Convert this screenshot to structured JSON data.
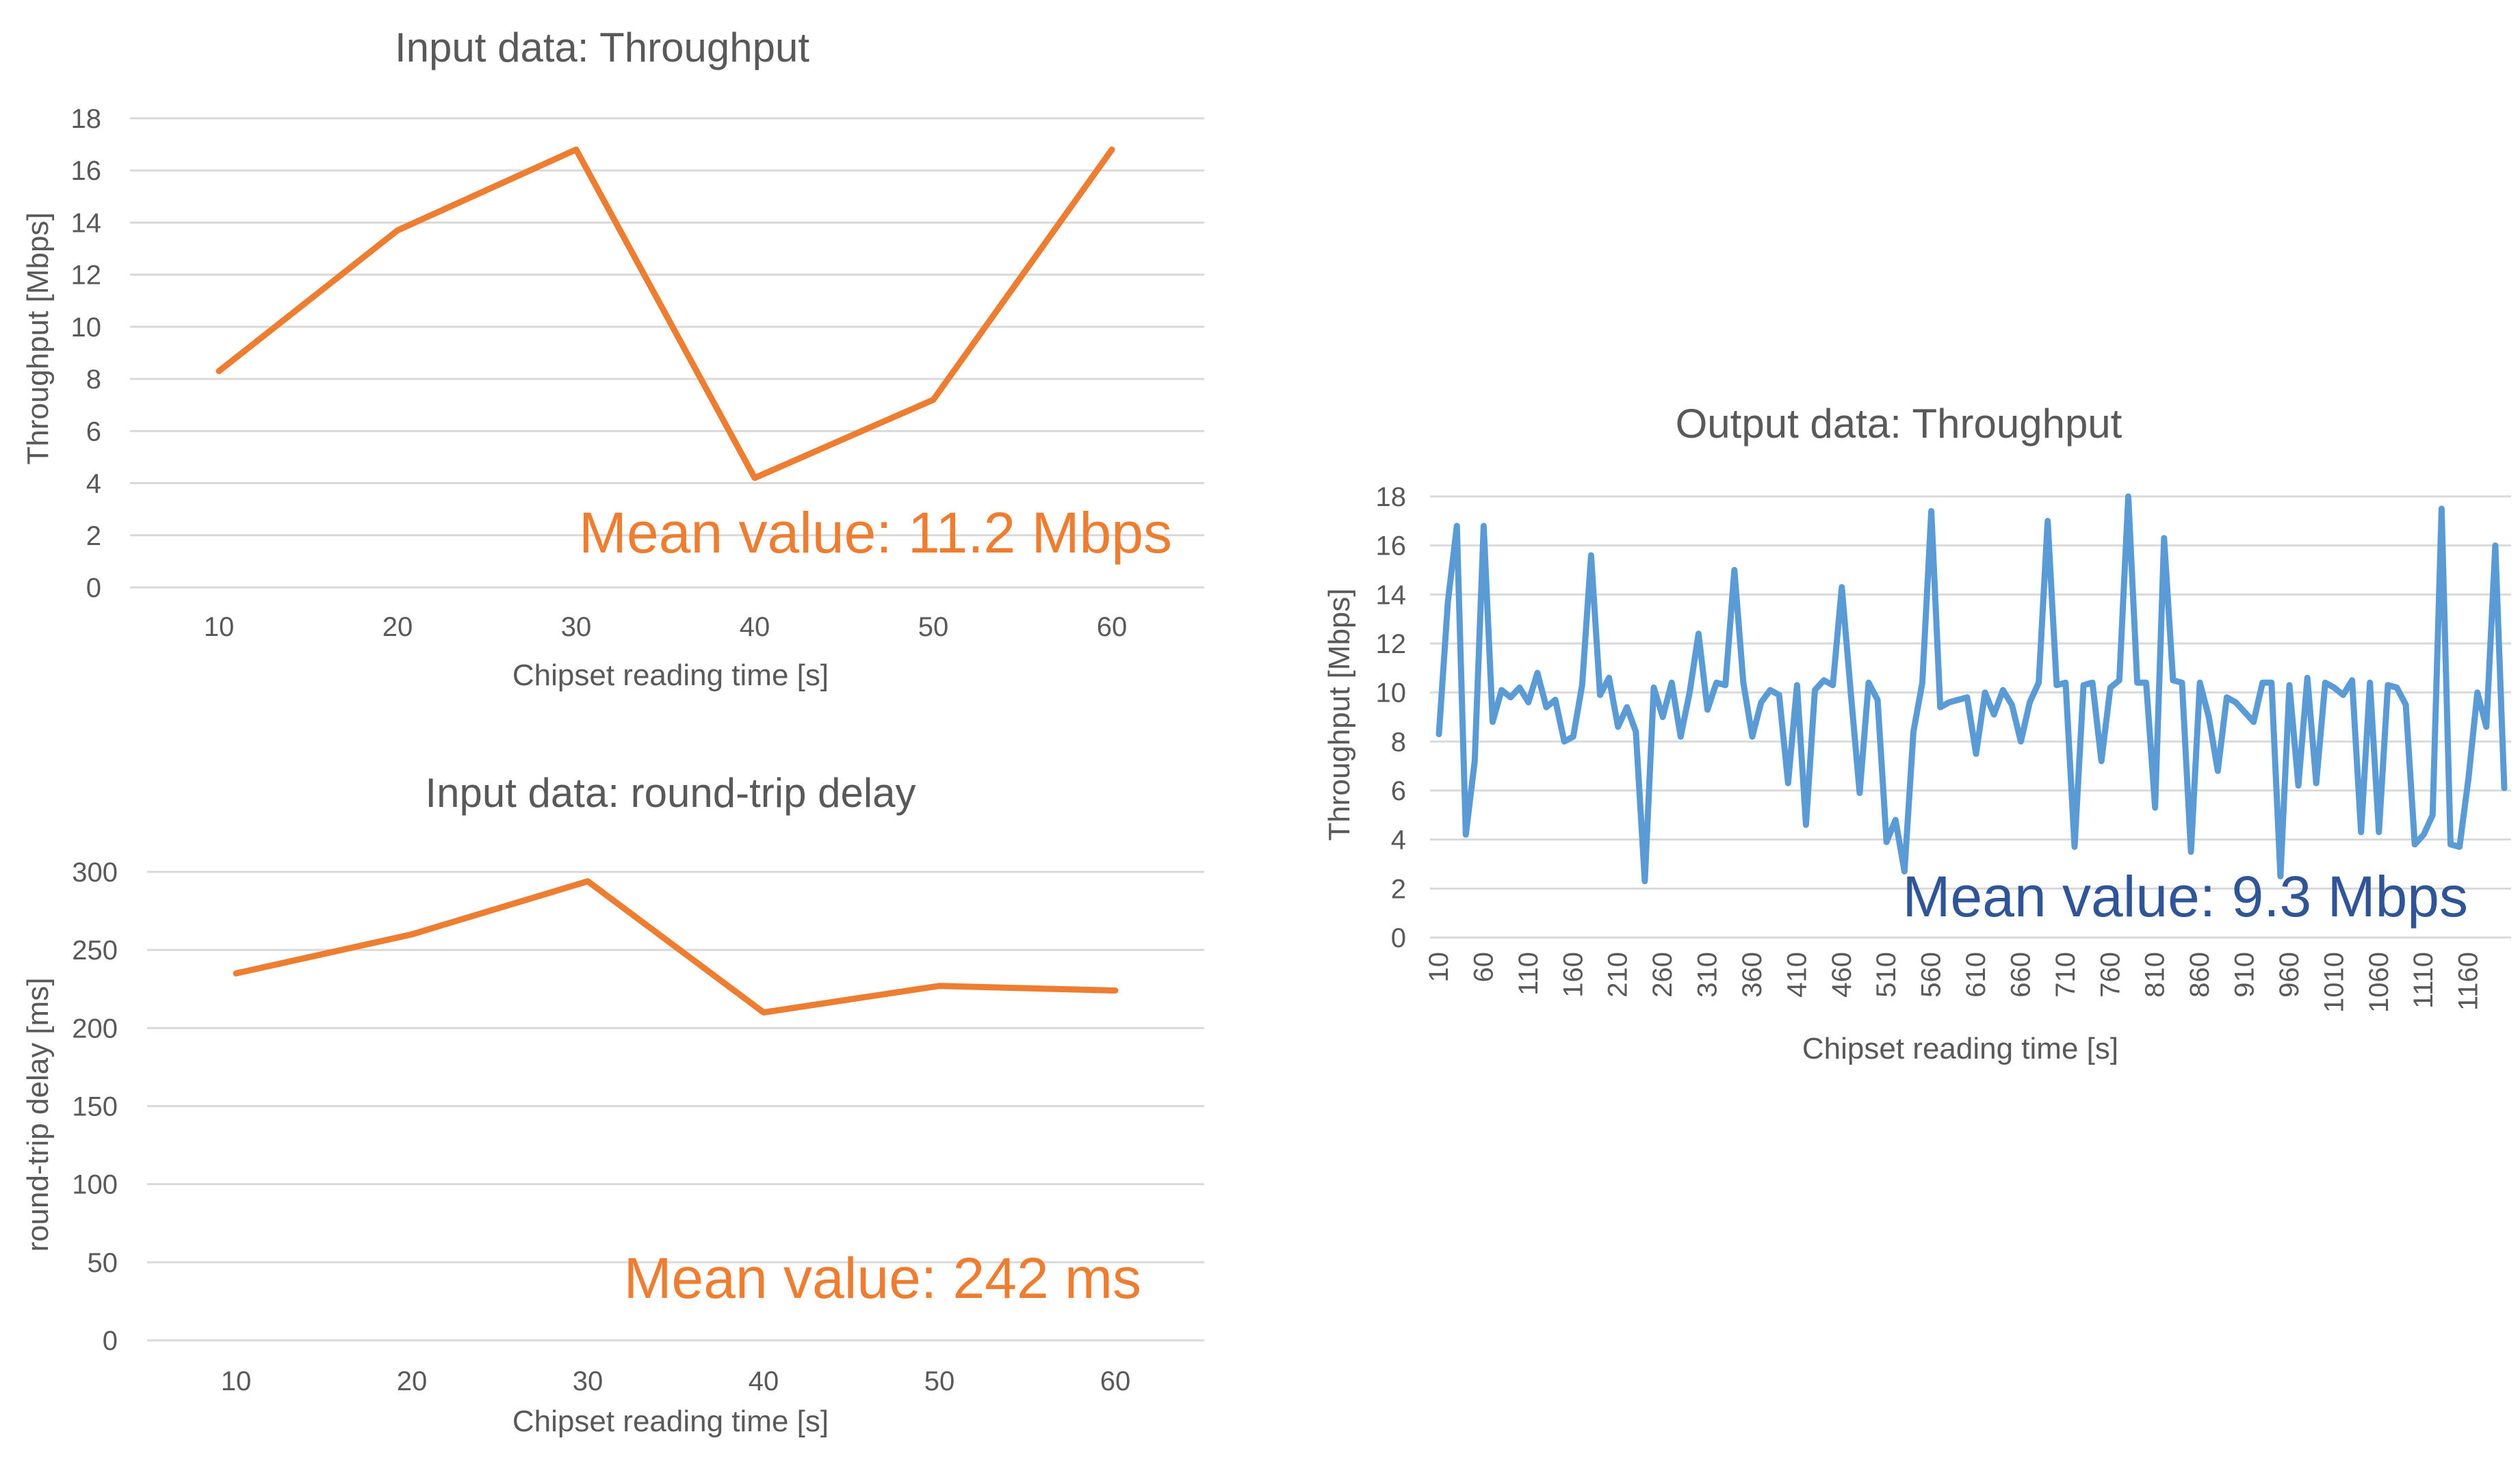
{
  "colors": {
    "input": "#ed7d31",
    "output": "#5b9bd5",
    "output_mean": "#2f5597"
  },
  "chart_data": [
    {
      "id": "input-throughput",
      "type": "line",
      "title": "Input data: Throughput",
      "xlabel": "Chipset reading time [s]",
      "ylabel": "Throughput [Mbps]",
      "categories": [
        "10",
        "20",
        "30",
        "40",
        "50",
        "60"
      ],
      "series": [
        {
          "name": "Throughput",
          "values": [
            8.3,
            13.7,
            16.8,
            4.2,
            7.2,
            16.8
          ]
        }
      ],
      "ylim": [
        0,
        18
      ],
      "yticks": [
        "0",
        "2",
        "4",
        "6",
        "8",
        "10",
        "12",
        "14",
        "16",
        "18"
      ],
      "grid": true,
      "annotation": "Mean value: 11.2 Mbps"
    },
    {
      "id": "input-delay",
      "type": "line",
      "title": "Input data: round-trip delay",
      "xlabel": "Chipset reading time [s]",
      "ylabel": "round-trip delay [ms]",
      "categories": [
        "10",
        "20",
        "30",
        "40",
        "50",
        "60"
      ],
      "series": [
        {
          "name": "round-trip delay",
          "values": [
            235,
            260,
            294,
            210,
            227,
            224
          ]
        }
      ],
      "ylim": [
        0,
        300
      ],
      "yticks": [
        "0",
        "50",
        "100",
        "150",
        "200",
        "250",
        "300"
      ],
      "grid": true,
      "annotation": "Mean value: 242 ms"
    },
    {
      "id": "output-throughput",
      "type": "line",
      "title": "Output data: Throughput",
      "xlabel": "Chipset reading time [s]",
      "ylabel": "Throughput [Mbps]",
      "x_start": 10,
      "x_step": 10,
      "xticks": [
        "10",
        "60",
        "110",
        "160",
        "210",
        "260",
        "310",
        "360",
        "410",
        "460",
        "510",
        "560",
        "610",
        "660",
        "710",
        "760",
        "810",
        "860",
        "910",
        "960",
        "1010",
        "1060",
        "1110",
        "1160"
      ],
      "series": [
        {
          "name": "Throughput",
          "values": [
            8.3,
            13.7,
            16.8,
            4.2,
            7.2,
            16.8,
            8.8,
            10.1,
            9.8,
            10.2,
            9.6,
            10.8,
            9.4,
            9.7,
            8.0,
            8.2,
            10.3,
            15.6,
            9.9,
            10.6,
            8.6,
            9.4,
            8.4,
            2.3,
            10.2,
            9.0,
            10.4,
            8.2,
            10.0,
            12.4,
            9.3,
            10.4,
            10.3,
            15.0,
            10.4,
            8.2,
            9.6,
            10.1,
            9.9,
            6.3,
            10.3,
            4.6,
            10.1,
            10.5,
            10.3,
            14.3,
            10.0,
            5.9,
            10.4,
            9.7,
            3.9,
            4.8,
            2.7,
            8.4,
            10.4,
            17.4,
            9.4,
            9.6,
            9.7,
            9.8,
            7.5,
            10.0,
            9.1,
            10.1,
            9.5,
            8.0,
            9.6,
            10.4,
            17.0,
            10.3,
            10.4,
            3.7,
            10.3,
            10.4,
            7.2,
            10.2,
            10.5,
            18.0,
            10.4,
            10.4,
            5.3,
            16.3,
            10.5,
            10.4,
            3.5,
            10.4,
            9.0,
            6.8,
            9.8,
            9.6,
            9.2,
            8.8,
            10.4,
            10.4,
            2.5,
            10.3,
            6.2,
            10.6,
            6.3,
            10.4,
            10.2,
            9.9,
            10.5,
            4.3,
            10.4,
            4.3,
            10.3,
            10.2,
            9.5,
            3.8,
            4.2,
            5.0,
            17.5,
            3.8,
            3.7,
            6.5,
            10.0,
            8.6,
            16.0,
            6.1
          ]
        }
      ],
      "ylim": [
        0,
        18
      ],
      "yticks": [
        "0",
        "2",
        "4",
        "6",
        "8",
        "10",
        "12",
        "14",
        "16",
        "18"
      ],
      "grid": true,
      "annotation": "Mean value: 9.3 Mbps"
    }
  ]
}
